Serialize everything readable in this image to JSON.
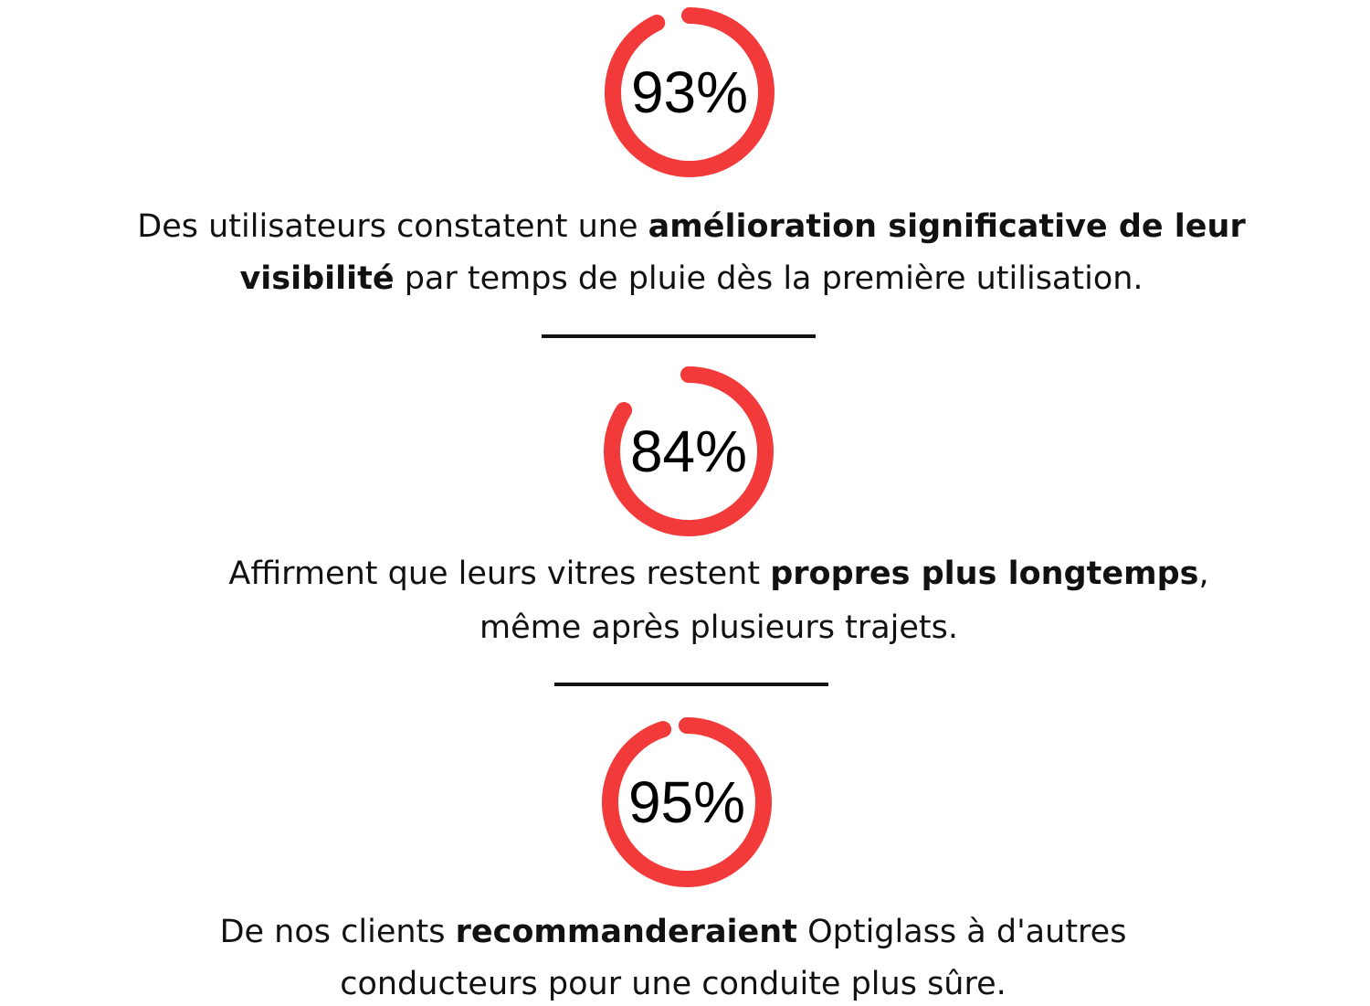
{
  "color": "#f23a3a",
  "stats": [
    {
      "value": 93,
      "value_label": "93%",
      "lines": [
        [
          {
            "text": "Des utilisateurs constatent une "
          },
          {
            "text": "amélioration significative de leur",
            "bold": true
          }
        ],
        [
          {
            "text": "visibilité",
            "bold": true
          },
          {
            "text": " par temps de pluie dès la première utilisation."
          }
        ]
      ]
    },
    {
      "value": 84,
      "value_label": "84%",
      "lines": [
        [
          {
            "text": "Affirment que leurs vitres restent "
          },
          {
            "text": "propres plus longtemps",
            "bold": true
          },
          {
            "text": ","
          }
        ],
        [
          {
            "text": "même après plusieurs trajets."
          }
        ]
      ]
    },
    {
      "value": 95,
      "value_label": "95%",
      "lines": [
        [
          {
            "text": "De nos clients "
          },
          {
            "text": "recommanderaient",
            "bold": true
          },
          {
            "text": " Optiglass à d'autres"
          }
        ],
        [
          {
            "text": "conducteurs pour une conduite plus sûre."
          }
        ]
      ]
    }
  ]
}
